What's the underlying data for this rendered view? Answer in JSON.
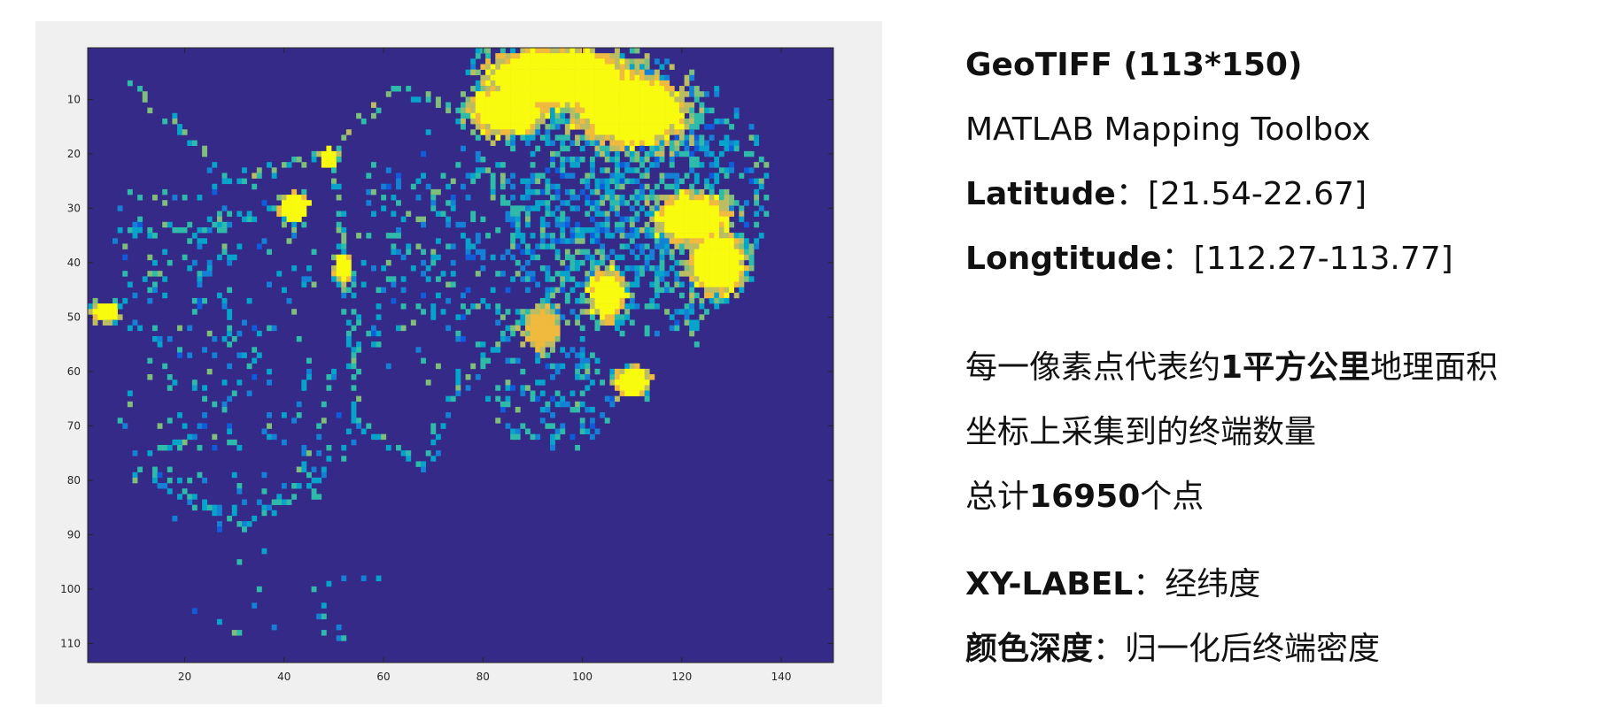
{
  "chart_data": {
    "type": "heatmap",
    "grid": {
      "rows": 113,
      "cols": 150
    },
    "xlim": [
      0.5,
      150.5
    ],
    "ylim": [
      0.5,
      113.5
    ],
    "x_ticks": [
      20,
      40,
      60,
      80,
      100,
      120,
      140
    ],
    "y_ticks": [
      10,
      20,
      30,
      40,
      50,
      60,
      70,
      80,
      90,
      100,
      110
    ],
    "y_direction": "reversed",
    "colormap": [
      "#352a87",
      "#0f5cdd",
      "#1481d6",
      "#06a4ca",
      "#2ebbaa",
      "#7fbf7b",
      "#bcbd62",
      "#f0ba3f",
      "#f9fb0e"
    ],
    "background_value": 0,
    "description_hint": "normalized terminal density per ~1 km² pixel",
    "dense_regions": [
      {
        "col": 95,
        "row": 6,
        "rc": 16,
        "rr": 6,
        "value": 1.0
      },
      {
        "col": 110,
        "row": 12,
        "rc": 12,
        "rr": 7,
        "value": 1.0
      },
      {
        "col": 85,
        "row": 12,
        "rc": 8,
        "rr": 5,
        "value": 1.0
      },
      {
        "col": 122,
        "row": 32,
        "rc": 8,
        "rr": 5,
        "value": 1.0
      },
      {
        "col": 127,
        "row": 40,
        "rc": 6,
        "rr": 6,
        "value": 1.0
      },
      {
        "col": 105,
        "row": 46,
        "rc": 4,
        "rr": 5,
        "value": 1.0
      },
      {
        "col": 110,
        "row": 62,
        "rc": 4,
        "rr": 3,
        "value": 1.0
      },
      {
        "col": 42,
        "row": 30,
        "rc": 3,
        "rr": 3,
        "value": 1.0
      },
      {
        "col": 4,
        "row": 49,
        "rc": 3,
        "rr": 2,
        "value": 1.0
      },
      {
        "col": 52,
        "row": 41,
        "rc": 2,
        "rr": 3,
        "value": 1.0
      },
      {
        "col": 49,
        "row": 21,
        "rc": 2,
        "rr": 2,
        "value": 1.0
      },
      {
        "col": 92,
        "row": 52,
        "rc": 4,
        "rr": 4,
        "value": 0.9
      }
    ],
    "linear_features": [
      {
        "from": [
          10,
          8
        ],
        "to": [
          30,
          25
        ],
        "value": 0.55
      },
      {
        "from": [
          30,
          25
        ],
        "to": [
          50,
          20
        ],
        "value": 0.6
      },
      {
        "from": [
          50,
          20
        ],
        "to": [
          62,
          8
        ],
        "value": 0.6
      },
      {
        "from": [
          50,
          20
        ],
        "to": [
          53,
          45
        ],
        "value": 0.55
      },
      {
        "from": [
          8,
          35
        ],
        "to": [
          42,
          30
        ],
        "value": 0.5
      },
      {
        "from": [
          53,
          45
        ],
        "to": [
          55,
          70
        ],
        "value": 0.5
      },
      {
        "from": [
          55,
          70
        ],
        "to": [
          68,
          78
        ],
        "value": 0.5
      },
      {
        "from": [
          68,
          78
        ],
        "to": [
          75,
          62
        ],
        "value": 0.45
      },
      {
        "from": [
          75,
          62
        ],
        "to": [
          95,
          45
        ],
        "value": 0.5
      },
      {
        "from": [
          62,
          8
        ],
        "to": [
          82,
          14
        ],
        "value": 0.55
      },
      {
        "from": [
          95,
          45
        ],
        "to": [
          105,
          30
        ],
        "value": 0.55
      },
      {
        "from": [
          105,
          30
        ],
        "to": [
          110,
          22
        ],
        "value": 0.55
      },
      {
        "from": [
          10,
          78
        ],
        "to": [
          33,
          88
        ],
        "value": 0.45
      },
      {
        "from": [
          33,
          88
        ],
        "to": [
          48,
          78
        ],
        "value": 0.4
      },
      {
        "from": [
          48,
          78
        ],
        "to": [
          55,
          70
        ],
        "value": 0.4
      },
      {
        "from": [
          90,
          65
        ],
        "to": [
          95,
          72
        ],
        "value": 0.45
      },
      {
        "from": [
          100,
          55
        ],
        "to": [
          100,
          70
        ],
        "value": 0.45
      },
      {
        "from": [
          78,
          20
        ],
        "to": [
          95,
          45
        ],
        "value": 0.4
      },
      {
        "from": [
          118,
          50
        ],
        "to": [
          130,
          45
        ],
        "value": 0.5
      },
      {
        "from": [
          115,
          30
        ],
        "to": [
          123,
          55
        ],
        "value": 0.5
      }
    ],
    "scatter_density": [
      {
        "col": 110,
        "row": 28,
        "rc": 28,
        "rr": 26,
        "prob": 0.55
      },
      {
        "col": 25,
        "row": 40,
        "rc": 22,
        "rr": 20,
        "prob": 0.12
      },
      {
        "col": 70,
        "row": 40,
        "rc": 20,
        "rr": 25,
        "prob": 0.18
      },
      {
        "col": 30,
        "row": 70,
        "rc": 25,
        "rr": 20,
        "prob": 0.1
      },
      {
        "col": 95,
        "row": 65,
        "rc": 15,
        "rr": 10,
        "prob": 0.25
      },
      {
        "col": 40,
        "row": 100,
        "rc": 20,
        "rr": 12,
        "prob": 0.03
      }
    ]
  },
  "info": {
    "title_bold": "GeoTIFF (113*150)",
    "toolbox": "MATLAB Mapping Toolbox",
    "latitude_label": "Latitude",
    "latitude_sep": "：",
    "latitude_value": "[21.54-22.67]",
    "longitude_label": "Longtitude",
    "longitude_sep": "：",
    "longitude_value": "[112.27-113.77]",
    "pixel_desc_pre": "每一像素点代表约",
    "pixel_desc_bold": "1平方公里",
    "pixel_desc_post": "地理面积",
    "terminal_desc": "坐标上采集到的终端数量",
    "total_pre": "总计",
    "total_bold": "16950",
    "total_post": "个点",
    "xy_label": "XY-LABEL",
    "xy_sep": "：",
    "xy_value": "经纬度",
    "color_label": "颜色深度",
    "color_sep": "：",
    "color_value": "归一化后终端密度"
  }
}
